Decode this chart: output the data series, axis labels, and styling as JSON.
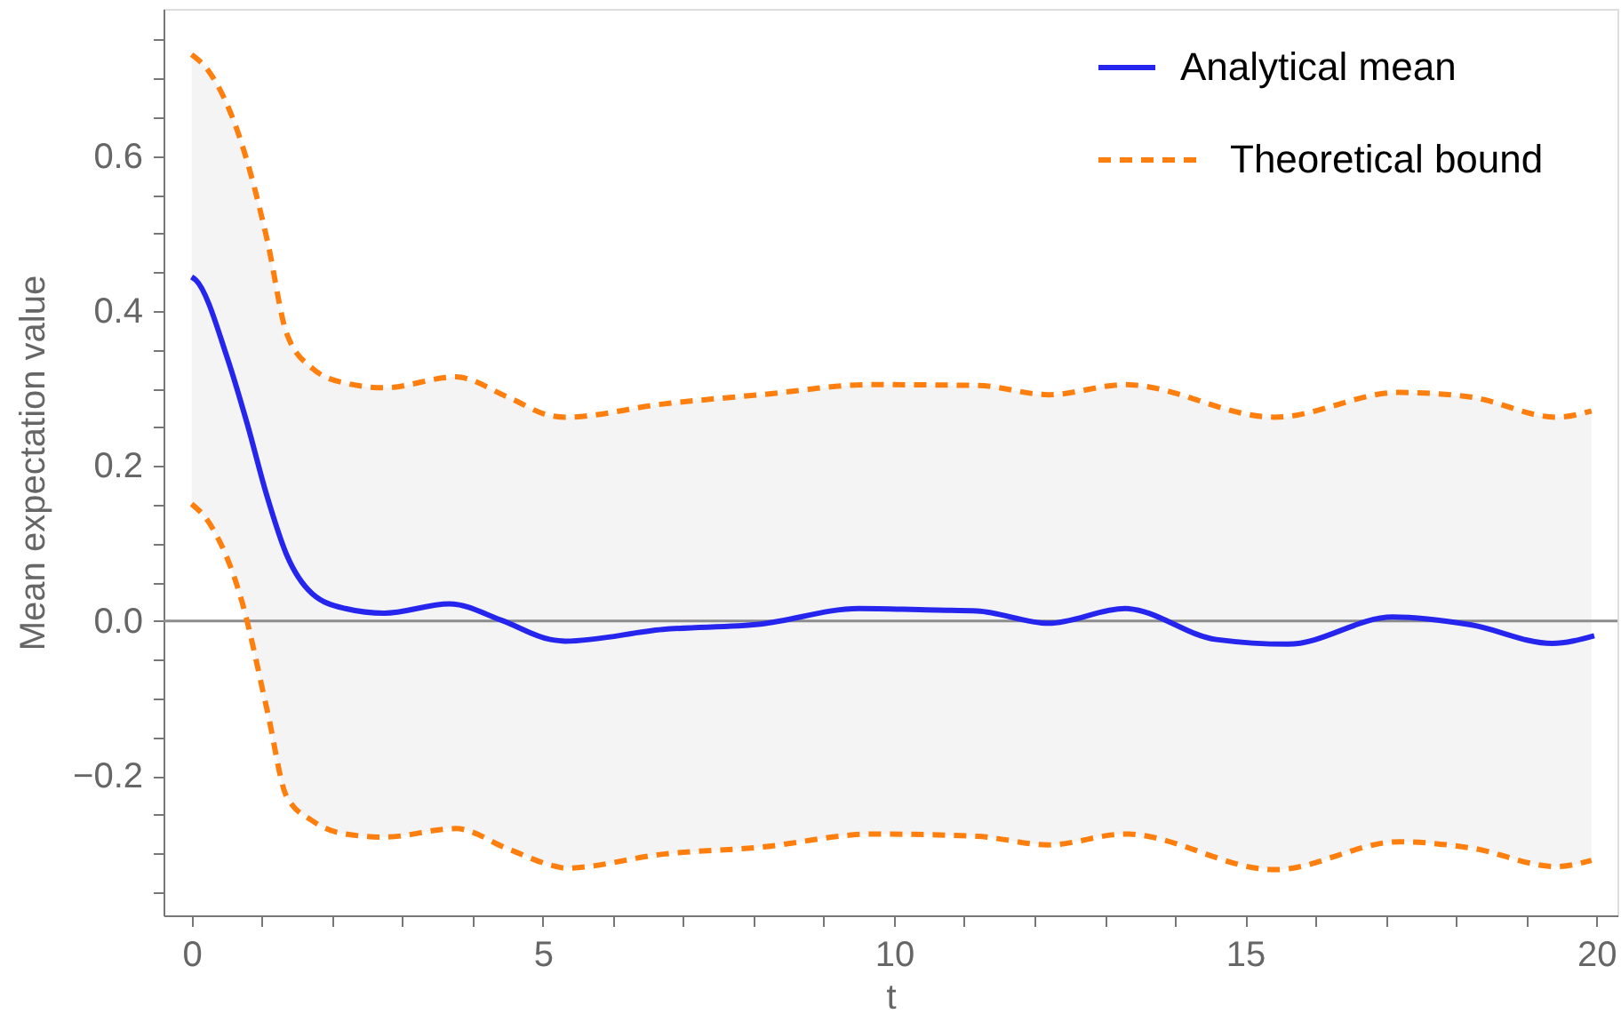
{
  "chart_data": {
    "type": "line",
    "xlabel": "t",
    "ylabel": "Mean expectation value",
    "xlim": [
      -0.4,
      20.3
    ],
    "ylim": [
      -0.38,
      0.79
    ],
    "xticks": [
      0,
      {
        "value": 1,
        "label": null
      },
      {
        "value": 2,
        "label": null
      },
      {
        "value": 3,
        "label": null
      },
      {
        "value": 4,
        "label": null
      },
      5,
      {
        "value": 6,
        "label": null
      },
      {
        "value": 7,
        "label": null
      },
      {
        "value": 8,
        "label": null
      },
      {
        "value": 9,
        "label": null
      },
      10,
      {
        "value": 11,
        "label": null
      },
      {
        "value": 12,
        "label": null
      },
      {
        "value": 13,
        "label": null
      },
      {
        "value": 14,
        "label": null
      },
      15,
      {
        "value": 16,
        "label": null
      },
      {
        "value": 17,
        "label": null
      },
      {
        "value": 18,
        "label": null
      },
      {
        "value": 19,
        "label": null
      },
      20
    ],
    "yticks": [
      {
        "value": -0.35,
        "label": null
      },
      {
        "value": -0.3,
        "label": null
      },
      {
        "value": -0.25,
        "label": null
      },
      {
        "value": -0.2,
        "label": "−0.2"
      },
      {
        "value": -0.15,
        "label": null
      },
      {
        "value": -0.1,
        "label": null
      },
      {
        "value": -0.05,
        "label": null
      },
      {
        "value": 0,
        "label": "0.0"
      },
      {
        "value": 0.05,
        "label": null
      },
      {
        "value": 0.1,
        "label": null
      },
      {
        "value": 0.15,
        "label": null
      },
      {
        "value": 0.2,
        "label": "0.2"
      },
      {
        "value": 0.25,
        "label": null
      },
      {
        "value": 0.3,
        "label": null
      },
      {
        "value": 0.35,
        "label": null
      },
      {
        "value": 0.4,
        "label": "0.4"
      },
      {
        "value": 0.45,
        "label": null
      },
      {
        "value": 0.5,
        "label": null
      },
      {
        "value": 0.55,
        "label": null
      },
      {
        "value": 0.6,
        "label": "0.6"
      },
      {
        "value": 0.65,
        "label": null
      },
      {
        "value": 0.7,
        "label": null
      },
      {
        "value": 0.75,
        "label": null
      }
    ],
    "grid": false,
    "legend": "top right",
    "marker": "none",
    "ref_lines": [
      {
        "axis": "y",
        "value": 0,
        "color": "#8c8c8c"
      }
    ],
    "x": [
      0,
      0.24,
      0.71,
      1.08,
      1.35,
      1.72,
      2.19,
      2.74,
      3.76,
      4.5,
      5.11,
      5.32,
      6.71,
      8.1,
      9.69,
      11.18,
      12.2,
      13.29,
      15.42,
      17.19,
      18.21,
      19.43,
      19.93
    ],
    "series": [
      {
        "name": "Analytical mean",
        "color": "#2525ee",
        "line_style": "solid",
        "x": [
          0,
          0.06,
          0.51,
          0.79,
          1.07,
          1.35,
          1.72,
          2.19,
          2.74,
          3.67,
          4.41,
          5.11,
          5.32,
          6.71,
          8.1,
          9.5,
          10.62,
          11.18,
          12.2,
          13.29,
          14.59,
          15.61,
          17.1,
          18.21,
          19.37,
          19.97
        ],
        "values": [
          0.444,
          0.44,
          0.339,
          0.255,
          0.162,
          0.086,
          0.035,
          0.016,
          0.01,
          0.022,
          0.001,
          -0.024,
          -0.026,
          -0.011,
          -0.004,
          0.016,
          0.014,
          0.013,
          -0.003,
          0.016,
          -0.024,
          -0.03,
          0.005,
          -0.005,
          -0.029,
          -0.019
        ]
      },
      {
        "name": "Theoretical bound",
        "color": "#ff7f0e",
        "line_style": "dashed",
        "values": [
          0.731,
          0.71,
          0.617,
          0.49,
          0.372,
          0.326,
          0.307,
          0.301,
          0.315,
          0.289,
          0.265,
          0.263,
          0.28,
          0.292,
          0.305,
          0.304,
          0.292,
          0.305,
          0.263,
          0.295,
          0.289,
          0.263,
          0.271
        ],
        "upper": [
          0.731,
          0.71,
          0.617,
          0.49,
          0.372,
          0.326,
          0.307,
          0.301,
          0.315,
          0.289,
          0.265,
          0.263,
          0.28,
          0.292,
          0.305,
          0.304,
          0.292,
          0.305,
          0.263,
          0.295,
          0.289,
          0.263,
          0.271
        ],
        "lower": [
          0.151,
          0.128,
          0.027,
          -0.117,
          -0.226,
          -0.258,
          -0.275,
          -0.279,
          -0.268,
          -0.294,
          -0.315,
          -0.319,
          -0.301,
          -0.292,
          -0.275,
          -0.278,
          -0.289,
          -0.275,
          -0.321,
          -0.285,
          -0.293,
          -0.317,
          -0.309
        ]
      },
      {
        "color": "#ff7f0e",
        "line_style": "dashed",
        "values": [
          0.151,
          0.128,
          0.027,
          -0.117,
          -0.226,
          -0.258,
          -0.275,
          -0.279,
          -0.268,
          -0.294,
          -0.315,
          -0.319,
          -0.301,
          -0.292,
          -0.275,
          -0.278,
          -0.289,
          -0.275,
          -0.321,
          -0.285,
          -0.293,
          -0.317,
          -0.309
        ]
      }
    ]
  }
}
